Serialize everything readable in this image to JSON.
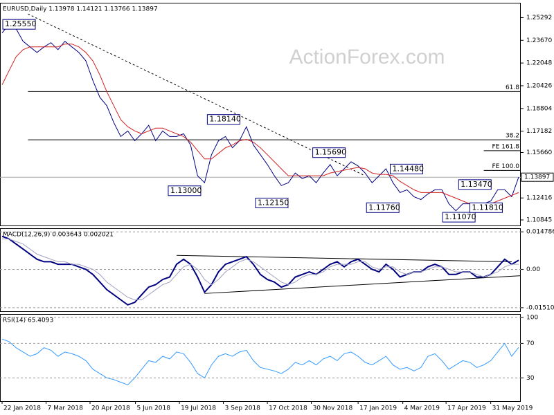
{
  "chart_data": [
    {
      "type": "line",
      "title": "EURUSD,Daily  1.13978 1.14121 1.13766 1.13897",
      "watermark": "ActionForex.com",
      "x": [
        0,
        1,
        2,
        3,
        4,
        5,
        6,
        7,
        8,
        9,
        10,
        11,
        12,
        13,
        14,
        15,
        16,
        17,
        18,
        19,
        20,
        21,
        22,
        23,
        24,
        25,
        26,
        27,
        28,
        29,
        30,
        31,
        32,
        33,
        34,
        35,
        36,
        37,
        38,
        39,
        40,
        41,
        42,
        43,
        44,
        45,
        46,
        47,
        48,
        49,
        50,
        51,
        52,
        53,
        54,
        55,
        56,
        57,
        58,
        59,
        60,
        61,
        62,
        63,
        64,
        65,
        66,
        67,
        68,
        69,
        70,
        71,
        72,
        73,
        74
      ],
      "series": [
        {
          "color": "#000080",
          "values": [
            1.242,
            1.248,
            1.245,
            1.236,
            1.232,
            1.228,
            1.232,
            1.235,
            1.23,
            1.236,
            1.232,
            1.228,
            1.222,
            1.208,
            1.196,
            1.19,
            1.178,
            1.168,
            1.172,
            1.165,
            1.17,
            1.176,
            1.165,
            1.172,
            1.168,
            1.168,
            1.17,
            1.162,
            1.14,
            1.135,
            1.155,
            1.165,
            1.168,
            1.16,
            1.165,
            1.175,
            1.162,
            1.155,
            1.148,
            1.14,
            1.133,
            1.135,
            1.142,
            1.138,
            1.14,
            1.135,
            1.142,
            1.148,
            1.14,
            1.145,
            1.15,
            1.147,
            1.142,
            1.135,
            1.14,
            1.145,
            1.135,
            1.128,
            1.13,
            1.125,
            1.123,
            1.127,
            1.13,
            1.13,
            1.12,
            1.115,
            1.12,
            1.12,
            1.117,
            1.12,
            1.122,
            1.13,
            1.13,
            1.125,
            1.139
          ]
        },
        {
          "color": "#d02020",
          "values": [
            1.205,
            1.215,
            1.225,
            1.23,
            1.232,
            1.232,
            1.232,
            1.232,
            1.232,
            1.234,
            1.234,
            1.232,
            1.228,
            1.222,
            1.212,
            1.2,
            1.19,
            1.18,
            1.175,
            1.172,
            1.17,
            1.172,
            1.174,
            1.174,
            1.172,
            1.17,
            1.168,
            1.164,
            1.158,
            1.152,
            1.152,
            1.156,
            1.16,
            1.162,
            1.165,
            1.166,
            1.164,
            1.16,
            1.155,
            1.15,
            1.145,
            1.14,
            1.14,
            1.14,
            1.14,
            1.14,
            1.14,
            1.142,
            1.143,
            1.144,
            1.145,
            1.146,
            1.145,
            1.142,
            1.141,
            1.141,
            1.14,
            1.136,
            1.133,
            1.13,
            1.128,
            1.128,
            1.128,
            1.128,
            1.126,
            1.124,
            1.122,
            1.12,
            1.12,
            1.12,
            1.12,
            1.122,
            1.124,
            1.126,
            1.128
          ]
        }
      ],
      "xlim": [
        -0.3,
        74.3
      ],
      "ylim": [
        1.1045,
        1.2635
      ],
      "yticks": [
        {
          "value": 1.25292,
          "label": "1.25292"
        },
        {
          "value": 1.2367,
          "label": "1.23670"
        },
        {
          "value": 1.22048,
          "label": "1.22048"
        },
        {
          "value": 1.20426,
          "label": "1.20426"
        },
        {
          "value": 1.18804,
          "label": "1.18804"
        },
        {
          "value": 1.17182,
          "label": "1.17182"
        },
        {
          "value": 1.1566,
          "label": "1.15660"
        },
        {
          "value": 1.12416,
          "label": "1.12416"
        },
        {
          "value": 1.10845,
          "label": "1.10845"
        }
      ],
      "last": {
        "value": 1.13897,
        "label": "1.13897"
      },
      "trendline": {
        "x": [
          3.7,
          52
        ],
        "y": [
          1.2555,
          1.14
        ]
      },
      "levels": [
        {
          "label": "61.8",
          "value": 1.2001,
          "x0": 3.7
        },
        {
          "label": "38.2",
          "value": 1.16566,
          "x0": 3.7
        },
        {
          "label": "FE 161.8",
          "value": 1.1579,
          "x0": 69
        },
        {
          "label": "FE 100.0",
          "value": 1.1438,
          "x0": 69
        }
      ],
      "annotations": [
        {
          "label": "1.25550",
          "x": 0.1,
          "y": 1.2481
        },
        {
          "label": "1.18140",
          "x": 29.4,
          "y": 1.1802
        },
        {
          "label": "1.13000",
          "x": 23.8,
          "y": 1.1293
        },
        {
          "label": "1.12150",
          "x": 36.3,
          "y": 1.1206
        },
        {
          "label": "1.15690",
          "x": 44.5,
          "y": 1.1565
        },
        {
          "label": "1.14480",
          "x": 55.6,
          "y": 1.1448
        },
        {
          "label": "1.11760",
          "x": 52.2,
          "y": 1.1172
        },
        {
          "label": "1.13470",
          "x": 65.4,
          "y": 1.1337
        },
        {
          "label": "1.11070",
          "x": 63.1,
          "y": 1.1104
        },
        {
          "label": "1.11810",
          "x": 67,
          "y": 1.1172
        }
      ]
    },
    {
      "type": "line",
      "title": "MACD(12,26,9) 0.003643 0.002021",
      "x": [
        0,
        1,
        2,
        3,
        4,
        5,
        6,
        7,
        8,
        9,
        10,
        11,
        12,
        13,
        14,
        15,
        16,
        17,
        18,
        19,
        20,
        21,
        22,
        23,
        24,
        25,
        26,
        27,
        28,
        29,
        30,
        31,
        32,
        33,
        34,
        35,
        36,
        37,
        38,
        39,
        40,
        41,
        42,
        43,
        44,
        45,
        46,
        47,
        48,
        49,
        50,
        51,
        52,
        53,
        54,
        55,
        56,
        57,
        58,
        59,
        60,
        61,
        62,
        63,
        64,
        65,
        66,
        67,
        68,
        69,
        70,
        71,
        72,
        73,
        74
      ],
      "series": [
        {
          "color": "#000080",
          "values": [
            0.013,
            0.012,
            0.01,
            0.008,
            0.006,
            0.004,
            0.003,
            0.003,
            0.002,
            0.002,
            0.002,
            0.001,
            0,
            -0.002,
            -0.005,
            -0.008,
            -0.01,
            -0.012,
            -0.014,
            -0.013,
            -0.01,
            -0.007,
            -0.006,
            -0.004,
            -0.003,
            0.002,
            0.004,
            0.002,
            -0.003,
            -0.009,
            -0.006,
            -0.001,
            0.002,
            0.003,
            0.004,
            0.005,
            0.002,
            -0.002,
            -0.004,
            -0.005,
            -0.007,
            -0.006,
            -0.003,
            -0.002,
            -0.001,
            -0.002,
            0,
            0.002,
            0.003,
            0.001,
            0.003,
            0.004,
            0.002,
            0,
            -0.001,
            0.002,
            0,
            -0.003,
            -0.002,
            -0.001,
            -0.001,
            0.001,
            0.002,
            0.001,
            -0.002,
            -0.002,
            -0.001,
            -0.001,
            -0.003,
            -0.003,
            -0.002,
            0.001,
            0.004,
            0.002,
            0.0036
          ]
        },
        {
          "color": "#a0a0c0",
          "values": [
            0.012,
            0.012,
            0.011,
            0.01,
            0.008,
            0.006,
            0.005,
            0.004,
            0.003,
            0.003,
            0.002,
            0.002,
            0.001,
            0,
            -0.002,
            -0.005,
            -0.007,
            -0.009,
            -0.011,
            -0.012,
            -0.012,
            -0.01,
            -0.008,
            -0.006,
            -0.005,
            -0.002,
            0.001,
            0.002,
            0,
            -0.004,
            -0.006,
            -0.004,
            -0.001,
            0.001,
            0.003,
            0.004,
            0.003,
            0.001,
            -0.001,
            -0.003,
            -0.005,
            -0.006,
            -0.005,
            -0.003,
            -0.002,
            -0.002,
            -0.001,
            0.001,
            0.002,
            0.002,
            0.002,
            0.003,
            0.003,
            0.001,
            0,
            0.001,
            0.001,
            -0.001,
            -0.002,
            -0.001,
            -0.001,
            0,
            0.001,
            0.001,
            0,
            -0.001,
            -0.001,
            -0.001,
            -0.002,
            -0.003,
            -0.002,
            -0.001,
            0.001,
            0.002,
            0.002
          ]
        }
      ],
      "xlim": [
        -0.3,
        74.3
      ],
      "ylim": [
        -0.0165,
        0.0162
      ],
      "yticks": [
        0.014786,
        {
          "value": 0,
          "label": "0.00"
        },
        -0.015107
      ],
      "trendlines": [
        {
          "x": [
            25,
            73
          ],
          "y": [
            0.0055,
            0.003
          ]
        },
        {
          "x": [
            29,
            74.3
          ],
          "y": [
            -0.0095,
            -0.0025
          ]
        }
      ]
    },
    {
      "type": "line",
      "title": "RSI(14) 65.4093",
      "x": [
        0,
        1,
        2,
        3,
        4,
        5,
        6,
        7,
        8,
        9,
        10,
        11,
        12,
        13,
        14,
        15,
        16,
        17,
        18,
        19,
        20,
        21,
        22,
        23,
        24,
        25,
        26,
        27,
        28,
        29,
        30,
        31,
        32,
        33,
        34,
        35,
        36,
        37,
        38,
        39,
        40,
        41,
        42,
        43,
        44,
        45,
        46,
        47,
        48,
        49,
        50,
        51,
        52,
        53,
        54,
        55,
        56,
        57,
        58,
        59,
        60,
        61,
        62,
        63,
        64,
        65,
        66,
        67,
        68,
        69,
        70,
        71,
        72,
        73,
        74
      ],
      "series": [
        {
          "color": "#3399ff",
          "values": [
            75,
            72,
            65,
            60,
            55,
            58,
            65,
            62,
            55,
            60,
            58,
            55,
            50,
            40,
            35,
            30,
            28,
            25,
            22,
            30,
            40,
            50,
            48,
            55,
            52,
            60,
            58,
            48,
            35,
            30,
            45,
            55,
            58,
            55,
            60,
            62,
            50,
            42,
            40,
            38,
            35,
            40,
            48,
            45,
            50,
            45,
            52,
            55,
            50,
            58,
            60,
            55,
            48,
            45,
            50,
            55,
            45,
            40,
            42,
            38,
            42,
            55,
            58,
            50,
            40,
            45,
            50,
            48,
            42,
            45,
            50,
            60,
            70,
            55,
            65.4
          ]
        }
      ],
      "xlim": [
        -0.3,
        74.3
      ],
      "ylim": [
        3,
        104
      ],
      "yticks": [
        100,
        70,
        30
      ],
      "xticks": [
        {
          "value": 0,
          "label": "22 Jan 2018"
        },
        {
          "value": 6.3,
          "label": "7 Mar 2018"
        },
        {
          "value": 12.6,
          "label": "20 Apr 2018"
        },
        {
          "value": 19.1,
          "label": "5 Jun 2018"
        },
        {
          "value": 25.4,
          "label": "19 Jul 2018"
        },
        {
          "value": 31.7,
          "label": "3 Sep 2018"
        },
        {
          "value": 38,
          "label": "17 Oct 2018"
        },
        {
          "value": 44.3,
          "label": "30 Nov 2018"
        },
        {
          "value": 51,
          "label": "17 Jan 2019"
        },
        {
          "value": 57.4,
          "label": "4 Mar 2019"
        },
        {
          "value": 63.6,
          "label": "17 Apr 2019"
        },
        {
          "value": 70,
          "label": "31 May 2019"
        }
      ]
    }
  ]
}
